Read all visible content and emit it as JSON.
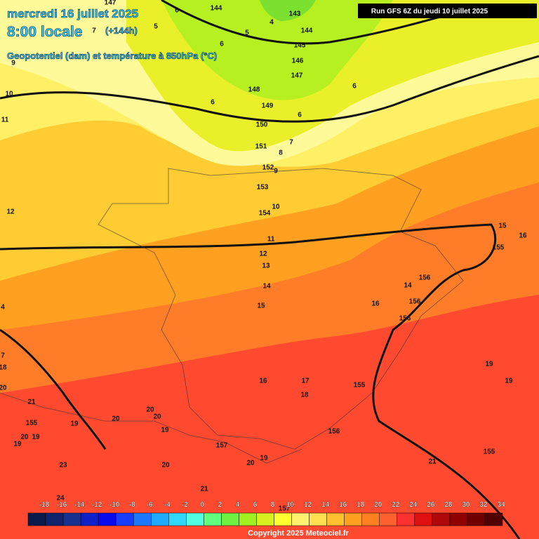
{
  "header": {
    "date": "mercredi 16 juillet 2025",
    "time": "8:00 locale",
    "lead": "(+144h)",
    "subtitle": "Geopotentiel (dam) et température à 850hPa (°C)",
    "run": "Run GFS 6Z du jeudi 10 juillet 2025"
  },
  "geopotential_labels": [
    147,
    144,
    143,
    144,
    145,
    146,
    147,
    148,
    149,
    150,
    151,
    152,
    153,
    154,
    155,
    156,
    156,
    156,
    155,
    156,
    157,
    155,
    155,
    157
  ],
  "temperature_labels": [
    6,
    4,
    5,
    5,
    7,
    6,
    9,
    10,
    11,
    6,
    6,
    6,
    7,
    8,
    9,
    10,
    12,
    11,
    12,
    13,
    14,
    15,
    14,
    16,
    15,
    16,
    16,
    17,
    18,
    19,
    19,
    18,
    20,
    21,
    7,
    4,
    19,
    20,
    20,
    20,
    19,
    20,
    19,
    19,
    23,
    20,
    20,
    19,
    21,
    21,
    24
  ],
  "legend": {
    "ticks": [
      -18,
      -16,
      -14,
      -12,
      -10,
      -8,
      -6,
      -4,
      -2,
      0,
      2,
      4,
      6,
      8,
      10,
      12,
      14,
      16,
      18,
      20,
      22,
      24,
      26,
      28,
      30,
      32,
      34
    ]
  },
  "footer": {
    "copyright": "Copyright 2025 Meteociel.fr"
  }
}
